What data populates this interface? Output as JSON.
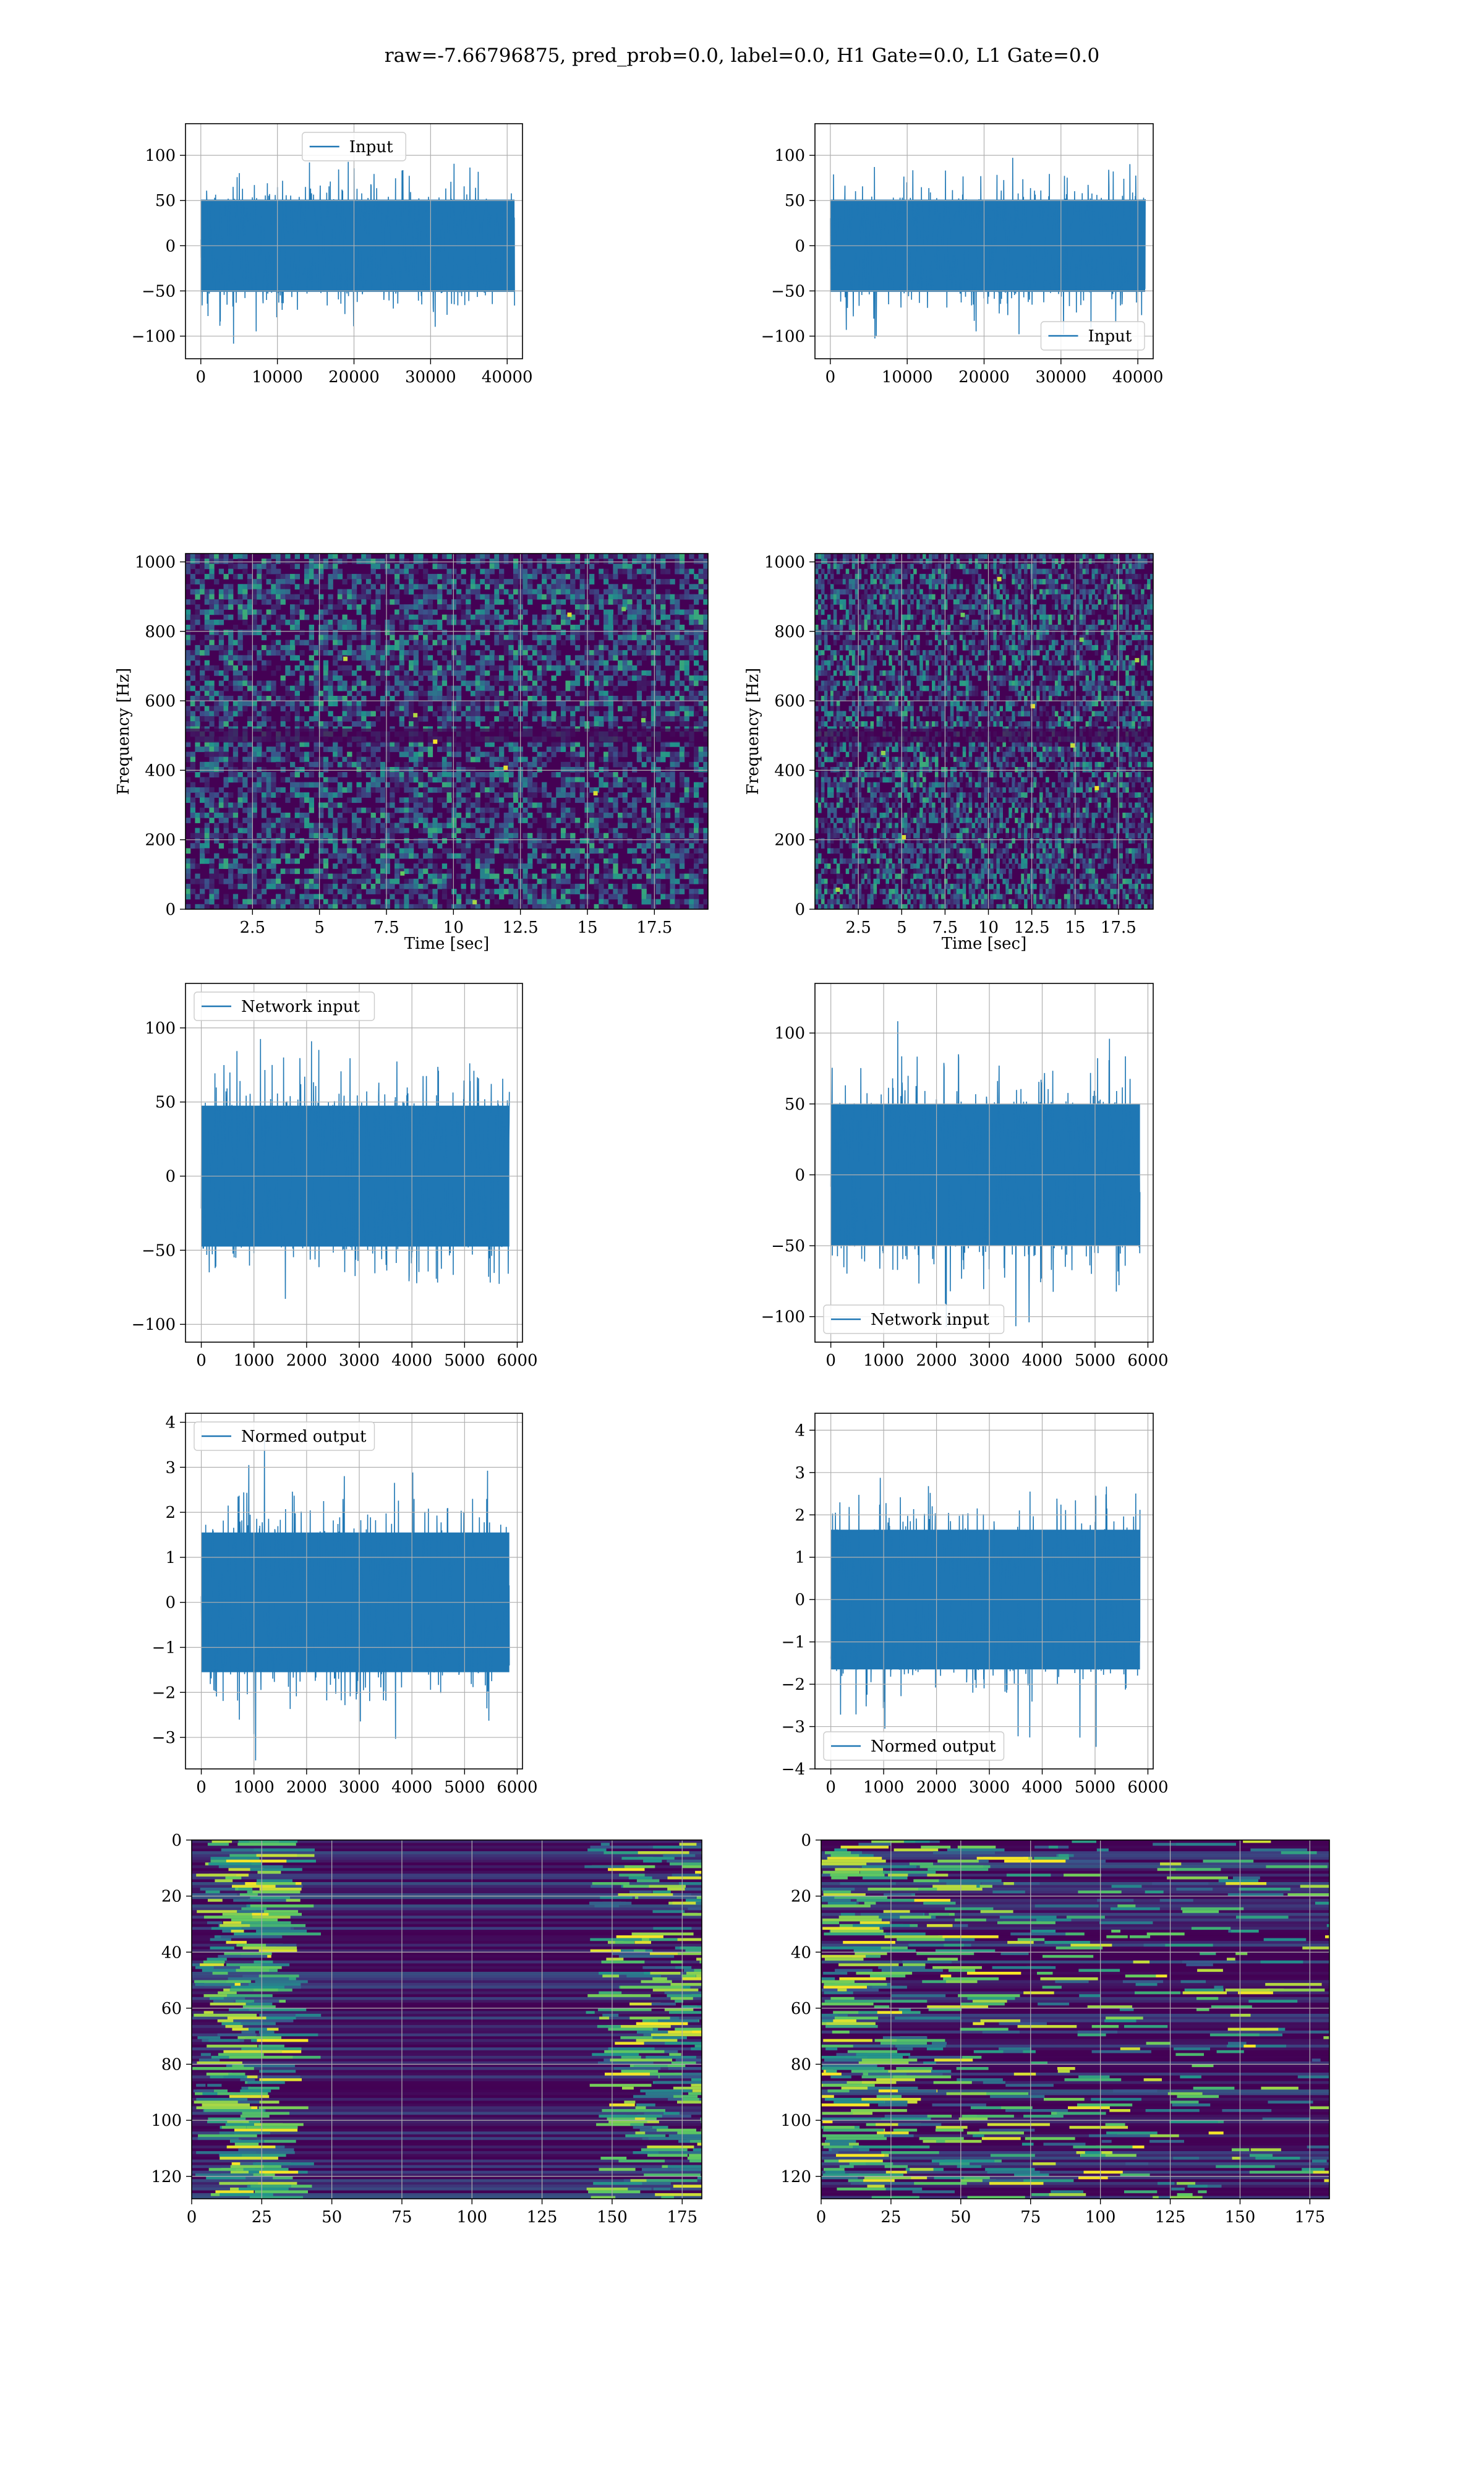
{
  "suptitle": "raw=-7.66796875, pred_prob=0.0, label=0.0, H1 Gate=0.0, L1 Gate=0.0",
  "colors": {
    "series": "#1f77b4",
    "grid": "#b0b0b0",
    "viridis_low": "#440154",
    "viridis_mid": "#21918c",
    "viridis_high": "#fde725"
  },
  "chart_data": [
    {
      "type": "line",
      "panel": "row1-left",
      "series": [
        {
          "name": "Input",
          "description": "noise-like strain time series, amplitude within about ±125"
        }
      ],
      "xlim": [
        -2000,
        42000
      ],
      "ylim": [
        -125,
        135
      ],
      "xticks": [
        0,
        10000,
        20000,
        30000,
        40000
      ],
      "yticks": [
        -100,
        -50,
        0,
        50,
        100
      ],
      "legend": "top-center",
      "grid": true
    },
    {
      "type": "line",
      "panel": "row1-right",
      "series": [
        {
          "name": "Input",
          "description": "noise-like strain time series, amplitude within about ±125"
        }
      ],
      "xlim": [
        -2000,
        42000
      ],
      "ylim": [
        -125,
        135
      ],
      "xticks": [
        0,
        10000,
        20000,
        30000,
        40000
      ],
      "yticks": [
        -100,
        -50,
        0,
        50,
        100
      ],
      "legend": "bottom-right",
      "grid": true
    },
    {
      "type": "heatmap",
      "panel": "row2-left",
      "colormap": "viridis",
      "xlabel": "Time [sec]",
      "ylabel": "Frequency [Hz]",
      "xlim": [
        0,
        19.5
      ],
      "ylim": [
        0,
        1024
      ],
      "xticks": [
        2.5,
        5.0,
        7.5,
        10.0,
        12.5,
        15.0,
        17.5
      ],
      "yticks": [
        0,
        200,
        400,
        600,
        800,
        1000
      ],
      "grid": true
    },
    {
      "type": "heatmap",
      "panel": "row2-right",
      "colormap": "viridis",
      "xlabel": "Time [sec]",
      "ylabel": "Frequency [Hz]",
      "xlim": [
        0,
        19.5
      ],
      "ylim": [
        0,
        1024
      ],
      "xticks": [
        2.5,
        5.0,
        7.5,
        10.0,
        12.5,
        15.0,
        17.5
      ],
      "yticks": [
        0,
        200,
        400,
        600,
        800,
        1000
      ],
      "grid": true
    },
    {
      "type": "line",
      "panel": "row3-left",
      "series": [
        {
          "name": "Network input"
        }
      ],
      "xlim": [
        -300,
        6100
      ],
      "ylim": [
        -112,
        130
      ],
      "xticks": [
        0,
        1000,
        2000,
        3000,
        4000,
        5000,
        6000
      ],
      "yticks": [
        -100,
        -50,
        0,
        50,
        100
      ],
      "legend": "top-left",
      "grid": true
    },
    {
      "type": "line",
      "panel": "row3-right",
      "series": [
        {
          "name": "Network input"
        }
      ],
      "xlim": [
        -300,
        6100
      ],
      "ylim": [
        -118,
        135
      ],
      "xticks": [
        0,
        1000,
        2000,
        3000,
        4000,
        5000,
        6000
      ],
      "yticks": [
        -100,
        -50,
        0,
        50,
        100
      ],
      "legend": "bottom-left",
      "grid": true
    },
    {
      "type": "line",
      "panel": "row4-left",
      "series": [
        {
          "name": "Normed output"
        }
      ],
      "xlim": [
        -300,
        6100
      ],
      "ylim": [
        -3.7,
        4.2
      ],
      "xticks": [
        0,
        1000,
        2000,
        3000,
        4000,
        5000,
        6000
      ],
      "yticks": [
        -3,
        -2,
        -1,
        0,
        1,
        2,
        3,
        4
      ],
      "legend": "top-left",
      "grid": true
    },
    {
      "type": "line",
      "panel": "row4-right",
      "series": [
        {
          "name": "Normed output"
        }
      ],
      "xlim": [
        -300,
        6100
      ],
      "ylim": [
        -4.0,
        4.4
      ],
      "xticks": [
        0,
        1000,
        2000,
        3000,
        4000,
        5000,
        6000
      ],
      "yticks": [
        -4,
        -3,
        -2,
        -1,
        0,
        1,
        2,
        3,
        4
      ],
      "legend": "bottom-left",
      "grid": true
    },
    {
      "type": "heatmap",
      "panel": "row5-left",
      "colormap": "viridis",
      "xlim": [
        0,
        182
      ],
      "ylim": [
        128,
        0
      ],
      "xticks": [
        0,
        25,
        50,
        75,
        100,
        125,
        150,
        175
      ],
      "yticks": [
        0,
        20,
        40,
        60,
        80,
        100,
        120
      ],
      "grid": true
    },
    {
      "type": "heatmap",
      "panel": "row5-right",
      "colormap": "viridis",
      "xlim": [
        0,
        182
      ],
      "ylim": [
        128,
        0
      ],
      "xticks": [
        0,
        25,
        50,
        75,
        100,
        125,
        150,
        175
      ],
      "yticks": [
        0,
        20,
        40,
        60,
        80,
        100,
        120
      ],
      "grid": true
    }
  ]
}
